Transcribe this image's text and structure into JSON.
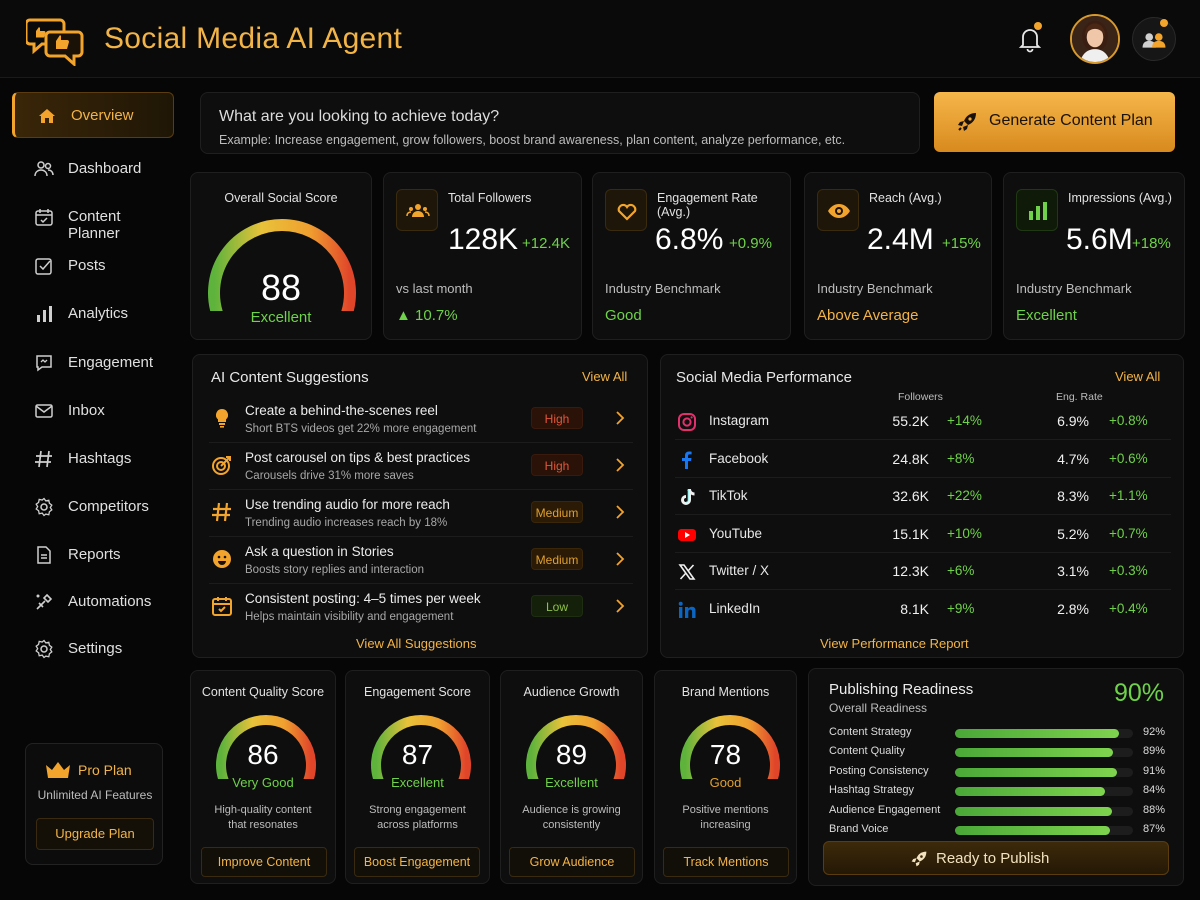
{
  "header": {
    "title": "Social Media AI Agent"
  },
  "sidebar": {
    "items": [
      {
        "label": "Overview",
        "icon": "home-icon",
        "active": true
      },
      {
        "label": "Dashboard",
        "icon": "users-icon"
      },
      {
        "label": "Content Planner",
        "icon": "calendar-icon"
      },
      {
        "label": "Posts",
        "icon": "checkbox-icon"
      },
      {
        "label": "Analytics",
        "icon": "bar-chart-icon"
      },
      {
        "label": "Engagement",
        "icon": "chat-icon"
      },
      {
        "label": "Inbox",
        "icon": "mail-icon"
      },
      {
        "label": "Hashtags",
        "icon": "hashtag-icon"
      },
      {
        "label": "Competitors",
        "icon": "gear-icon"
      },
      {
        "label": "Reports",
        "icon": "document-icon"
      },
      {
        "label": "Automations",
        "icon": "automation-icon"
      },
      {
        "label": "Settings",
        "icon": "settings-icon"
      }
    ],
    "pro": {
      "title": "Pro Plan",
      "subtitle": "Unlimited AI Features",
      "button": "Upgrade Plan"
    }
  },
  "goal": {
    "question": "What are you looking to achieve today?",
    "example": "Example: Increase engagement, grow followers, boost brand awareness, plan content, analyze performance, etc.",
    "button": "Generate Content Plan"
  },
  "overall": {
    "title": "Overall Social Score",
    "value": "88",
    "score": 88,
    "label": "Excellent"
  },
  "stats": [
    {
      "title": "Total Followers",
      "value": "128K",
      "delta": "+12.4K",
      "sub": "vs last month",
      "eval": "▲ 10.7%",
      "icon": "followers-icon"
    },
    {
      "title": "Engagement Rate (Avg.)",
      "value": "6.8%",
      "delta": "+0.9%",
      "sub": "Industry Benchmark",
      "eval": "Good",
      "icon": "heart-icon"
    },
    {
      "title": "Reach (Avg.)",
      "value": "2.4M",
      "delta": "+15%",
      "sub": "Industry Benchmark",
      "eval": "Above Average",
      "icon": "eye-icon"
    },
    {
      "title": "Impressions (Avg.)",
      "value": "5.6M",
      "delta": "+18%",
      "sub": "Industry Benchmark",
      "eval": "Excellent",
      "icon": "bars-icon"
    }
  ],
  "suggestions": {
    "title": "AI Content Suggestions",
    "view_all": "View All",
    "footer": "View All Suggestions",
    "items": [
      {
        "title": "Create a behind-the-scenes reel",
        "desc": "Short BTS videos get 22% more engagement",
        "priority": "High",
        "icon": "lightbulb-icon"
      },
      {
        "title": "Post carousel on tips & best practices",
        "desc": "Carousels drive 31% more saves",
        "priority": "High",
        "icon": "target-icon"
      },
      {
        "title": "Use trending audio for more reach",
        "desc": "Trending audio increases reach by 18%",
        "priority": "Medium",
        "icon": "hashtag-icon"
      },
      {
        "title": "Ask a question in Stories",
        "desc": "Boosts story replies and interaction",
        "priority": "Medium",
        "icon": "smiley-icon"
      },
      {
        "title": "Consistent posting: 4–5 times per week",
        "desc": "Helps maintain visibility and engagement",
        "priority": "Low",
        "icon": "calendar-icon"
      }
    ]
  },
  "performance": {
    "title": "Social Media Performance",
    "view_all": "View All",
    "col_followers": "Followers",
    "col_eng": "Eng. Rate",
    "footer": "View Performance Report",
    "rows": [
      {
        "name": "Instagram",
        "followers": "55.2K",
        "fdelta": "+14%",
        "eng": "6.9%",
        "edelta": "+0.8%",
        "icon": "instagram-icon"
      },
      {
        "name": "Facebook",
        "followers": "24.8K",
        "fdelta": "+8%",
        "eng": "4.7%",
        "edelta": "+0.6%",
        "icon": "facebook-icon"
      },
      {
        "name": "TikTok",
        "followers": "32.6K",
        "fdelta": "+22%",
        "eng": "8.3%",
        "edelta": "+1.1%",
        "icon": "tiktok-icon"
      },
      {
        "name": "YouTube",
        "followers": "15.1K",
        "fdelta": "+10%",
        "eng": "5.2%",
        "edelta": "+0.7%",
        "icon": "youtube-icon"
      },
      {
        "name": "Twitter / X",
        "followers": "12.3K",
        "fdelta": "+6%",
        "eng": "3.1%",
        "edelta": "+0.3%",
        "icon": "x-icon"
      },
      {
        "name": "LinkedIn",
        "followers": "8.1K",
        "fdelta": "+9%",
        "eng": "2.8%",
        "edelta": "+0.4%",
        "icon": "linkedin-icon"
      }
    ]
  },
  "scores": [
    {
      "title": "Content Quality Score",
      "value": "86",
      "score": 86,
      "label": "Very Good",
      "desc1": "High-quality content",
      "desc2": "that resonates",
      "button": "Improve Content"
    },
    {
      "title": "Engagement Score",
      "value": "87",
      "score": 87,
      "label": "Excellent",
      "desc1": "Strong engagement",
      "desc2": "across platforms",
      "button": "Boost Engagement"
    },
    {
      "title": "Audience Growth",
      "value": "89",
      "score": 89,
      "label": "Excellent",
      "desc1": "Audience is growing",
      "desc2": "consistently",
      "button": "Grow Audience"
    },
    {
      "title": "Brand Mentions",
      "value": "78",
      "score": 78,
      "label": "Good",
      "desc1": "Positive mentions",
      "desc2": "increasing",
      "button": "Track Mentions"
    }
  ],
  "readiness": {
    "title": "Publishing Readiness",
    "subtitle": "Overall Readiness",
    "percent": "90%",
    "items": [
      {
        "name": "Content Strategy",
        "value": "92%",
        "pct": 92
      },
      {
        "name": "Content Quality",
        "value": "89%",
        "pct": 89
      },
      {
        "name": "Posting Consistency",
        "value": "91%",
        "pct": 91
      },
      {
        "name": "Hashtag Strategy",
        "value": "84%",
        "pct": 84
      },
      {
        "name": "Audience Engagement",
        "value": "88%",
        "pct": 88
      },
      {
        "name": "Brand Voice",
        "value": "87%",
        "pct": 87
      }
    ],
    "button": "Ready to Publish"
  },
  "colors": {
    "accent": "#f3b447",
    "positive": "#6fd24a",
    "high": "#e0573a",
    "medium": "#e0a030",
    "low": "#8fc04a"
  }
}
